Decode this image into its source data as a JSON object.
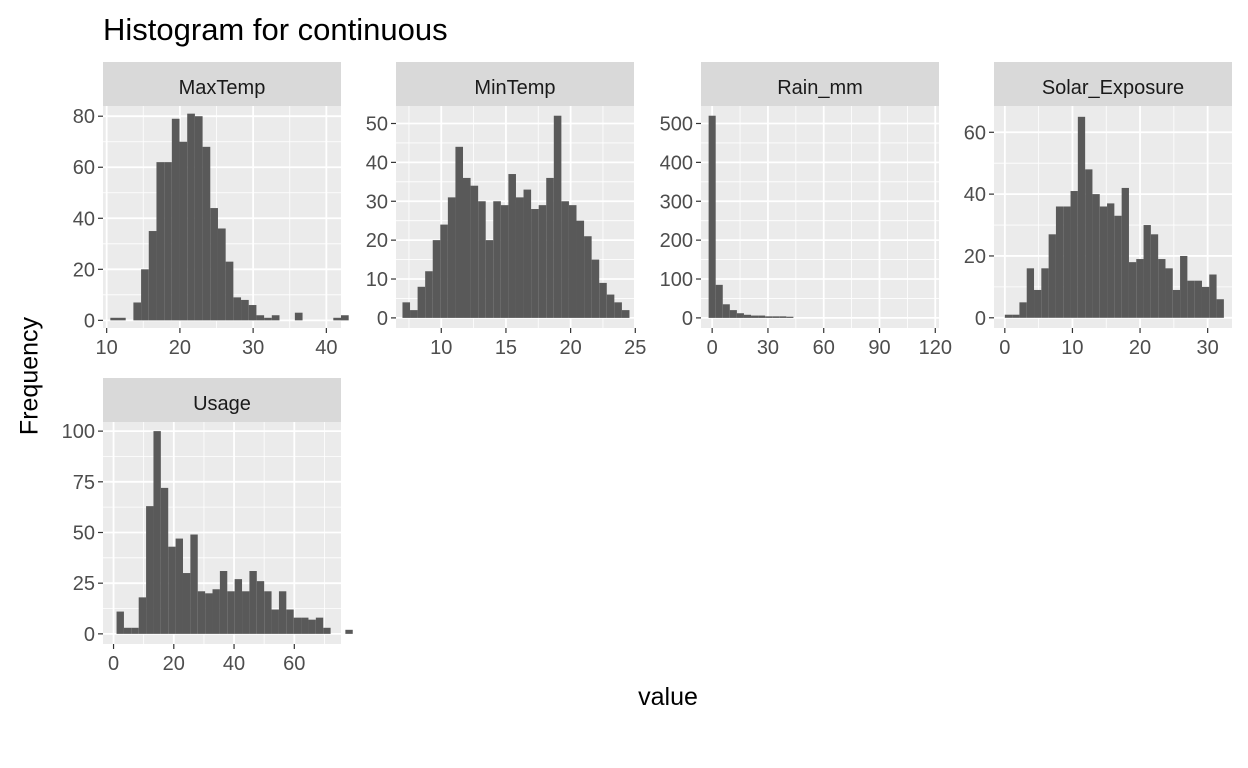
{
  "title": "Histogram for continuous",
  "x_axis_title": "value",
  "y_axis_title": "Frequency",
  "colors": {
    "panel_background": "#ebebeb",
    "grid": "#ffffff",
    "strip_background": "#d9d9d9",
    "bar_fill": "#595959",
    "tick_text": "#4d4d4d"
  },
  "chart_data": [
    {
      "type": "bar",
      "facet": "MaxTemp",
      "xlim": [
        9.5,
        42
      ],
      "ylim": [
        -3,
        84
      ],
      "x_ticks": [
        10,
        20,
        30,
        40
      ],
      "y_ticks": [
        0,
        20,
        40,
        60,
        80
      ],
      "bin_width": 1.05,
      "bin_start": 10.5,
      "values": [
        1,
        1,
        0,
        7,
        20,
        35,
        62,
        62,
        79,
        70,
        81,
        80,
        68,
        44,
        36,
        23,
        9,
        8,
        6,
        2,
        1,
        2,
        0,
        0,
        3,
        0,
        0,
        0,
        0,
        1,
        2
      ]
    },
    {
      "type": "bar",
      "facet": "MinTemp",
      "xlim": [
        6.5,
        24.9
      ],
      "ylim": [
        -2.6,
        54.5
      ],
      "x_ticks": [
        10,
        15,
        20,
        25
      ],
      "y_ticks": [
        0,
        10,
        20,
        30,
        40,
        50
      ],
      "bin_width": 0.585,
      "bin_start": 7.0,
      "values": [
        4,
        2,
        8,
        12,
        20,
        24,
        31,
        44,
        36,
        34,
        30,
        20,
        30,
        29,
        37,
        31,
        33,
        28,
        29,
        36,
        52,
        30,
        29,
        25,
        21,
        15,
        9,
        6,
        4,
        2
      ]
    },
    {
      "type": "bar",
      "facet": "Rain_mm",
      "xlim": [
        -6,
        122
      ],
      "ylim": [
        -26,
        545
      ],
      "x_ticks": [
        0,
        30,
        60,
        90,
        120
      ],
      "y_ticks": [
        0,
        100,
        200,
        300,
        400,
        500
      ],
      "bin_width": 3.8,
      "bin_start": -1.9,
      "values": [
        520,
        85,
        35,
        20,
        12,
        8,
        6,
        6,
        4,
        4,
        4,
        3,
        0,
        0,
        0,
        0,
        0,
        0,
        0,
        0,
        0,
        0,
        0,
        0,
        0,
        0,
        0,
        0,
        0,
        0,
        0,
        0
      ]
    },
    {
      "type": "bar",
      "facet": "Solar_Exposure",
      "xlim": [
        -1.6,
        33.6
      ],
      "ylim": [
        -3.3,
        68.5
      ],
      "x_ticks": [
        0,
        10,
        20,
        30
      ],
      "y_ticks": [
        0,
        20,
        40,
        60
      ],
      "bin_width": 1.08,
      "bin_start": 0.0,
      "values": [
        1,
        1,
        5,
        16,
        9,
        16,
        27,
        36,
        36,
        41,
        65,
        48,
        40,
        36,
        37,
        33,
        42,
        18,
        19,
        30,
        27,
        19,
        16,
        9,
        20,
        12,
        12,
        10,
        14,
        6
      ]
    },
    {
      "type": "bar",
      "facet": "Usage",
      "xlim": [
        -3.5,
        75.5
      ],
      "ylim": [
        -5,
        104.5
      ],
      "x_ticks": [
        0,
        20,
        40,
        60
      ],
      "y_ticks": [
        0,
        25,
        50,
        75,
        100
      ],
      "bin_width": 2.45,
      "bin_start": 1.0,
      "values": [
        11,
        3,
        3,
        18,
        63,
        100,
        72,
        43,
        47,
        30,
        49,
        21,
        20,
        22,
        31,
        21,
        27,
        21,
        31,
        26,
        21,
        12,
        21,
        12,
        8,
        8,
        7,
        8,
        3,
        0,
        0,
        2
      ]
    }
  ]
}
